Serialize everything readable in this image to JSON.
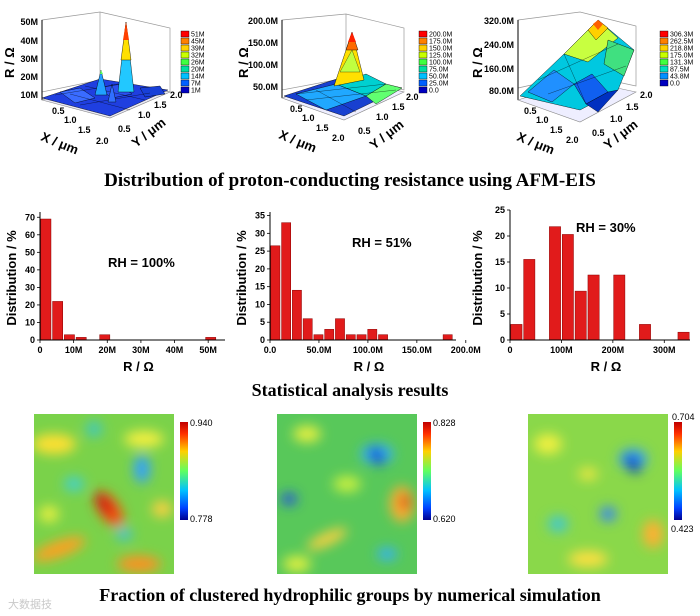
{
  "captions": {
    "top": "Distribution of proton-conducting resistance using AFM-EIS",
    "middle": "Statistical analysis results",
    "bottom": "Fraction of clustered hydrophilic groups by  numerical simulation"
  },
  "colors": {
    "bar": "#e11b1b",
    "axis": "#000000"
  },
  "watermark": "大数据技",
  "chart_data": [
    {
      "type": "surface3d",
      "panel": "RH 100%",
      "zlabel": "R / Ω",
      "xlabel": "X / μm",
      "ylabel": "Y / μm",
      "zticks": [
        "50M",
        "40M",
        "30M",
        "20M",
        "10M"
      ],
      "xticks": [
        "0.5",
        "1.0",
        "1.5",
        "2.0"
      ],
      "yticks": [
        "0.5",
        "1.0",
        "1.5",
        "2.0"
      ],
      "legend": [
        "51M",
        "45M",
        "39M",
        "32M",
        "26M",
        "20M",
        "14M",
        "7M",
        "1M"
      ],
      "legend_colors": [
        "#ff0000",
        "#ff8000",
        "#ffd000",
        "#c8ff00",
        "#40ff40",
        "#00e0a0",
        "#00c0ff",
        "#0060ff",
        "#0000c0"
      ]
    },
    {
      "type": "surface3d",
      "panel": "RH 51%",
      "zlabel": "R / Ω",
      "xlabel": "X / μm",
      "ylabel": "Y / μm",
      "zticks": [
        "200.0M",
        "150.0M",
        "100.0M",
        "50.0M"
      ],
      "xticks": [
        "0.5",
        "1.0",
        "1.5",
        "2.0"
      ],
      "yticks": [
        "0.5",
        "1.0",
        "1.5",
        "2.0"
      ],
      "legend": [
        "200.0M",
        "175.0M",
        "150.0M",
        "125.0M",
        "100.0M",
        "75.0M",
        "50.0M",
        "25.0M",
        "0.0"
      ],
      "legend_colors": [
        "#ff0000",
        "#ff8000",
        "#ffd000",
        "#c8ff00",
        "#40ff40",
        "#00e0a0",
        "#00c0ff",
        "#0060ff",
        "#0000c0"
      ]
    },
    {
      "type": "surface3d",
      "panel": "RH 30%",
      "zlabel": "R / Ω",
      "xlabel": "X / μm",
      "ylabel": "Y / μm",
      "zticks": [
        "320.0M",
        "240.0M",
        "160.0M",
        "80.0M"
      ],
      "xticks": [
        "0.5",
        "1.0",
        "1.5",
        "2.0"
      ],
      "yticks": [
        "0.5",
        "1.0",
        "1.5",
        "2.0"
      ],
      "legend": [
        "306.3M",
        "262.5M",
        "218.8M",
        "175.0M",
        "131.3M",
        "87.5M",
        "43.8M",
        "0.0"
      ],
      "legend_colors": [
        "#ff0000",
        "#ff8000",
        "#ffd000",
        "#c8ff00",
        "#40ff40",
        "#00e0c0",
        "#0090ff",
        "#0000c0"
      ]
    },
    {
      "type": "bar",
      "title": "RH = 100%",
      "xlabel": "R / Ω",
      "ylabel": "Distribution / %",
      "xlim": [
        0,
        55000000
      ],
      "ylim": [
        0,
        73
      ],
      "bin_width": 3500000,
      "x": [
        1750000,
        5250000,
        8750000,
        12250000,
        19250000,
        50750000
      ],
      "values": [
        69,
        22,
        3,
        1.5,
        3,
        1.5
      ],
      "xticks": [
        {
          "v": 0,
          "label": "0"
        },
        {
          "v": 10000000,
          "label": "10M"
        },
        {
          "v": 20000000,
          "label": "20M"
        },
        {
          "v": 30000000,
          "label": "30M"
        },
        {
          "v": 40000000,
          "label": "40M"
        },
        {
          "v": 50000000,
          "label": "50M"
        }
      ],
      "yticks": [
        0,
        10,
        20,
        30,
        40,
        50,
        60,
        70
      ]
    },
    {
      "type": "bar",
      "title": "RH = 51%",
      "xlabel": "R / Ω",
      "ylabel": "Distribution / %",
      "xlim": [
        0,
        190000000
      ],
      "ylim": [
        0,
        36
      ],
      "bin_width": 11000000,
      "x": [
        5500000,
        16500000,
        27500000,
        38500000,
        49500000,
        60500000,
        71500000,
        82500000,
        93500000,
        104500000,
        115500000,
        126500000,
        137500000,
        181500000
      ],
      "values": [
        26.5,
        33,
        14,
        6,
        1.5,
        3,
        6,
        1.5,
        1.5,
        3,
        1.5,
        0,
        0,
        1.5
      ],
      "xticks": [
        {
          "v": 0,
          "label": "0.0"
        },
        {
          "v": 50000000,
          "label": "50.0M"
        },
        {
          "v": 100000000,
          "label": "100.0M"
        },
        {
          "v": 150000000,
          "label": "150.0M"
        },
        {
          "v": 200000000,
          "label": "200.0M"
        }
      ],
      "yticks": [
        0,
        5,
        10,
        15,
        20,
        25,
        30,
        35
      ]
    },
    {
      "type": "bar",
      "title": "RH = 30%",
      "xlabel": "R / Ω",
      "ylabel": "Distribution / %",
      "xlim": [
        0,
        350000000
      ],
      "ylim": [
        0,
        25
      ],
      "bin_width": 25000000,
      "x": [
        12500000,
        37500000,
        62500000,
        87500000,
        112500000,
        137500000,
        162500000,
        187500000,
        212500000,
        237500000,
        262500000,
        287500000,
        312500000,
        337500000
      ],
      "values": [
        3,
        15.5,
        0,
        21.8,
        20.3,
        9.4,
        12.5,
        0,
        12.5,
        0,
        3,
        0,
        0,
        1.5
      ],
      "xticks": [
        {
          "v": 0,
          "label": "0"
        },
        {
          "v": 100000000,
          "label": "100M"
        },
        {
          "v": 200000000,
          "label": "200M"
        },
        {
          "v": 300000000,
          "label": "300M"
        }
      ],
      "yticks": [
        0,
        5,
        10,
        15,
        20,
        25
      ]
    },
    {
      "type": "heatmap",
      "panel": "left",
      "colorbar_max": "0.940",
      "colorbar_min": "0.778"
    },
    {
      "type": "heatmap",
      "panel": "middle",
      "colorbar_max": "0.828",
      "colorbar_min": "0.620"
    },
    {
      "type": "heatmap",
      "panel": "right",
      "colorbar_max": "0.704",
      "colorbar_min": "0.423"
    }
  ]
}
